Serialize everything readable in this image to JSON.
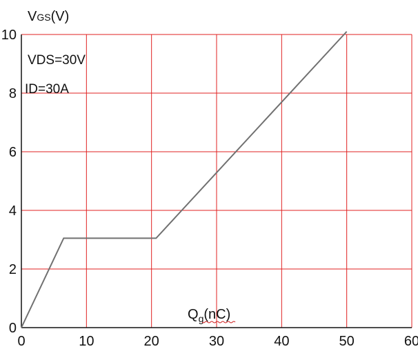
{
  "chart_data": {
    "type": "line",
    "title": "",
    "ylabel": {
      "main": "V",
      "sub": "GS",
      "rest": "(V)"
    },
    "xlabel": {
      "main": "Q",
      "sub": "g",
      "rest": "(nC)"
    },
    "xlim": [
      0,
      60
    ],
    "ylim": [
      0,
      10
    ],
    "xticks": [
      "0",
      "10",
      "20",
      "30",
      "40",
      "50",
      "60"
    ],
    "yticks": [
      "0",
      "2",
      "4",
      "6",
      "8",
      "10"
    ],
    "grid": true,
    "annotations": [
      "VDS=30V",
      "ID=30A"
    ],
    "series": [
      {
        "x": [
          0,
          6.5,
          20.7,
          50
        ],
        "y": [
          0,
          3.05,
          3.05,
          10.1
        ]
      }
    ]
  },
  "colors": {
    "grid": "#e02020",
    "line": "#707070",
    "axis": "#111111"
  }
}
